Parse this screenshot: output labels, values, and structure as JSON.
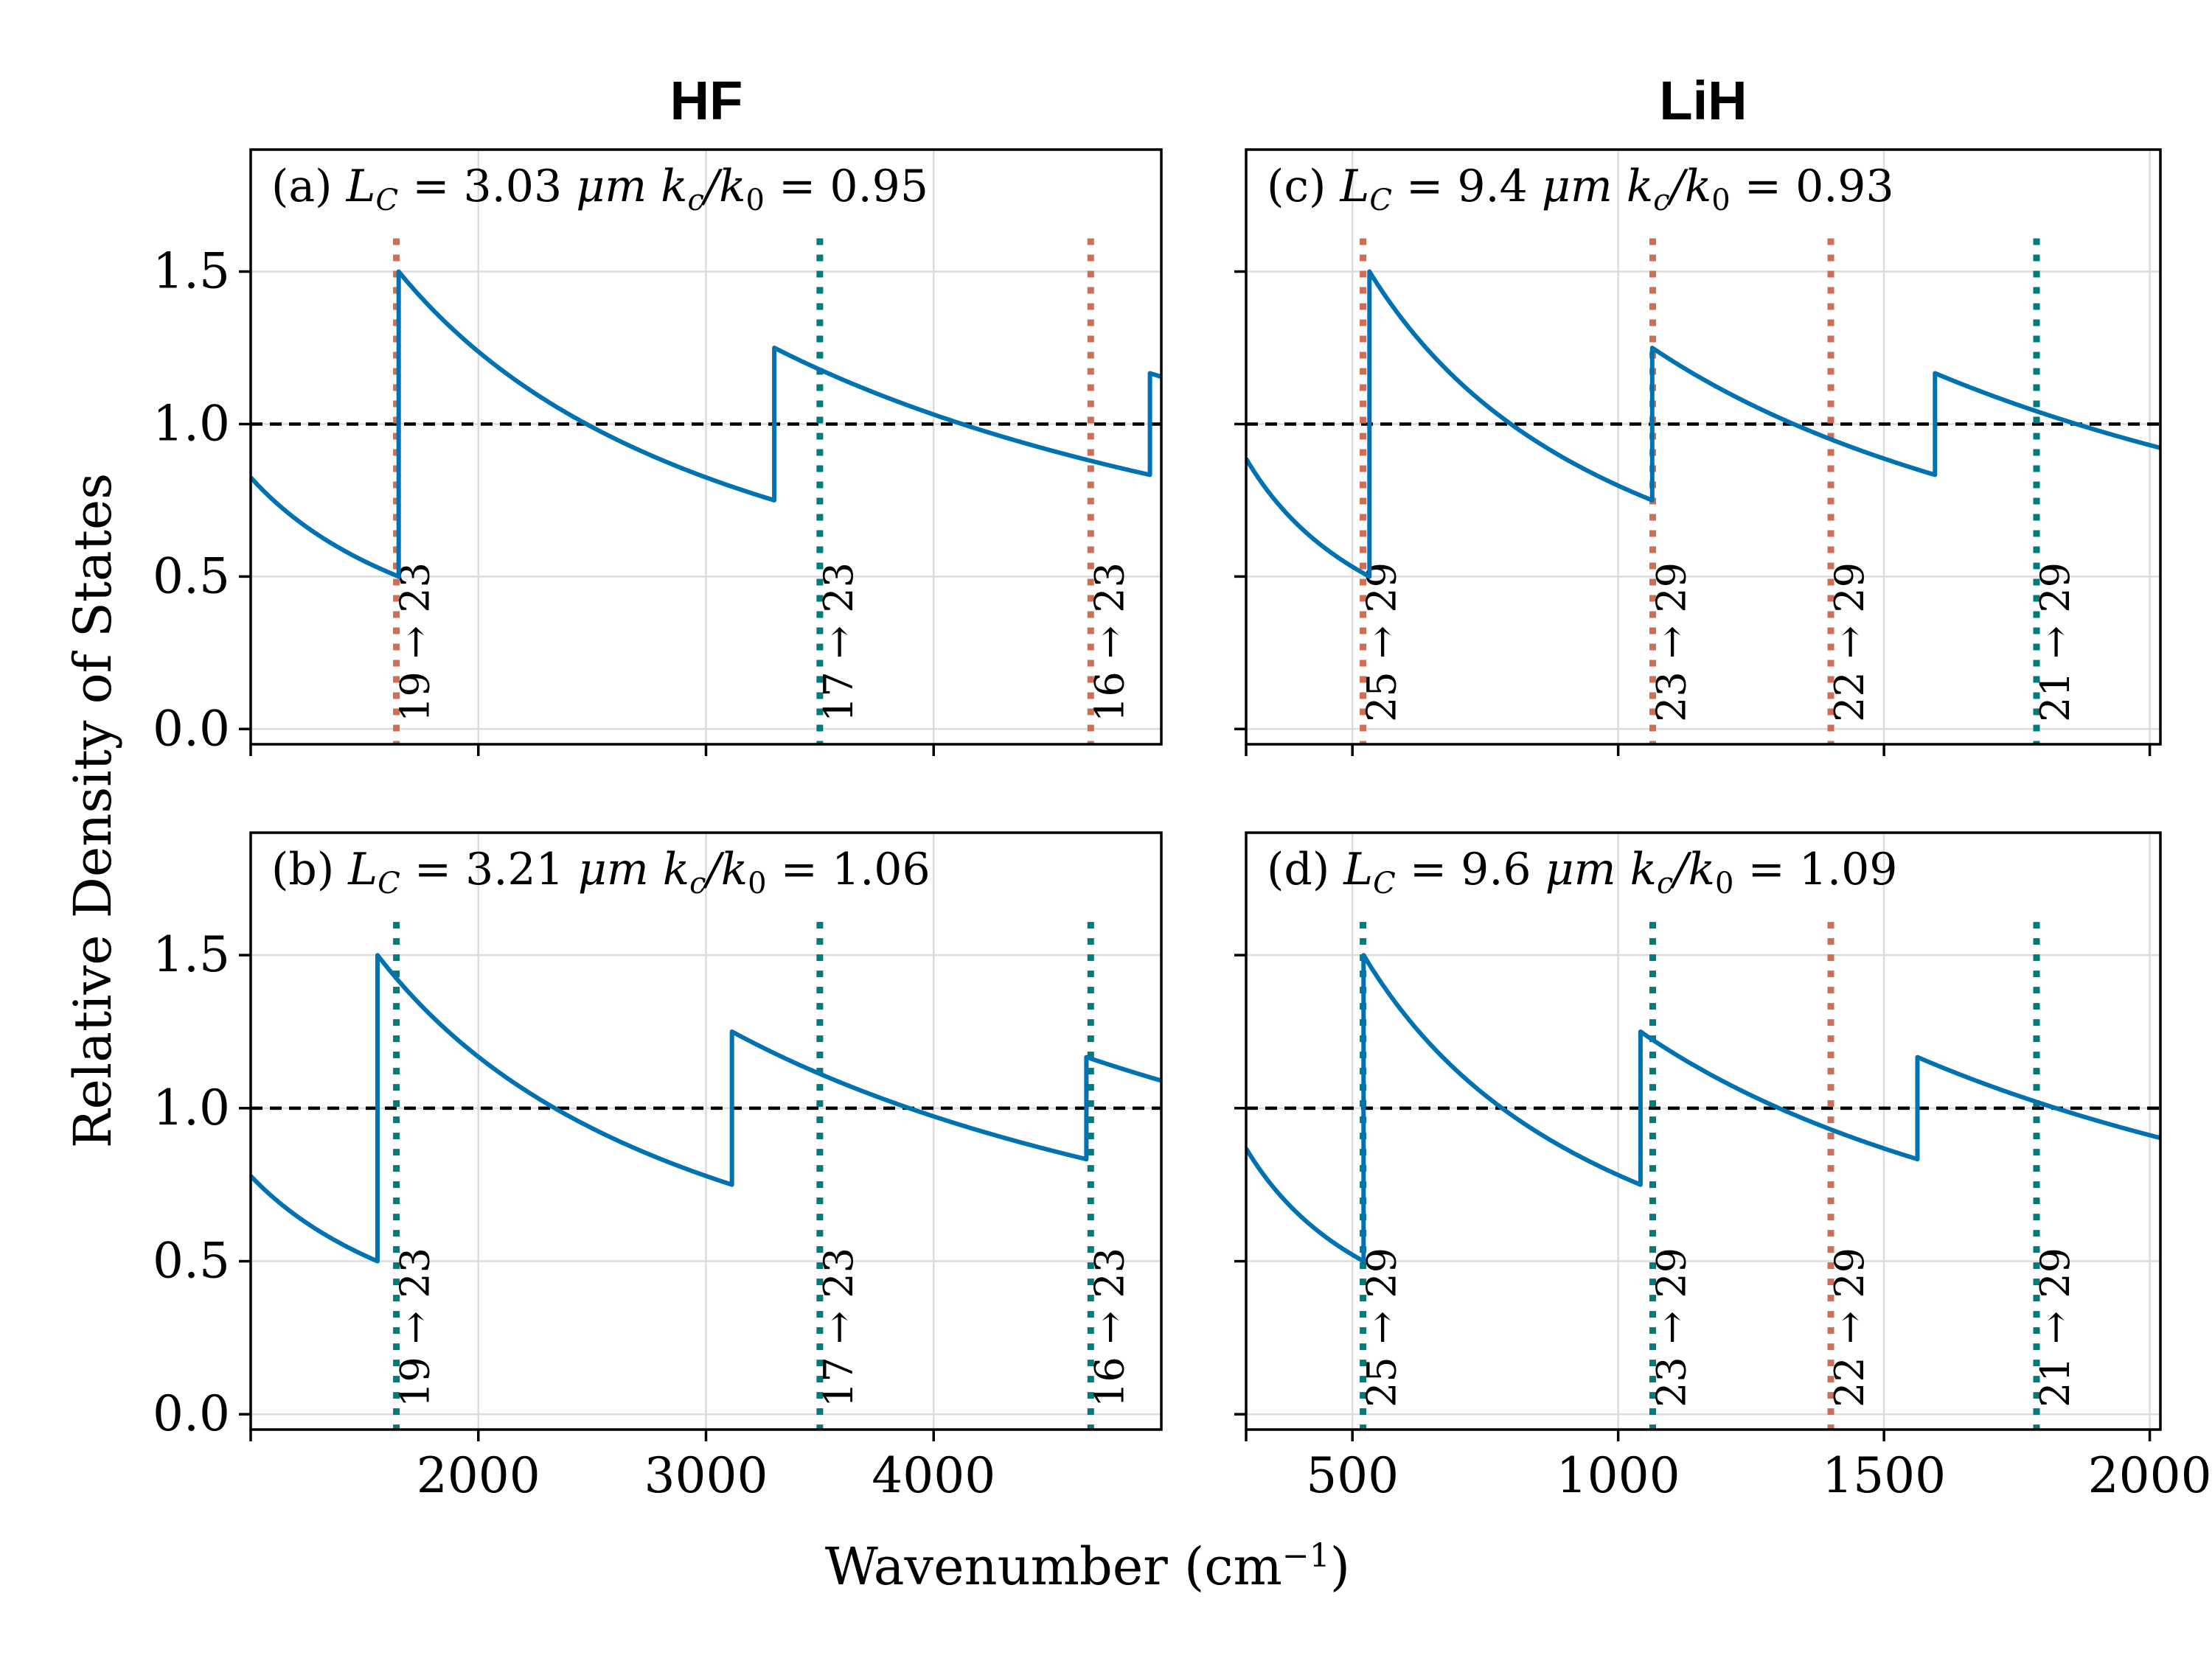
{
  "figure": {
    "column_titles": [
      "HF",
      "LiH"
    ],
    "ylabel": "Relative Density of States",
    "xlabel": "Wavenumber (cm",
    "xlabel_sup": "−1",
    "xlabel_close": ")"
  },
  "colors": {
    "curve": "#0072b2",
    "red_line": "#cd6e55",
    "teal_line": "#007b7b",
    "reference": "#000000",
    "grid": "#dcdcdc"
  },
  "chart_data": [
    {
      "type": "line",
      "panel": "a",
      "title": "HF",
      "annotation": {
        "prefix": "(a)",
        "lc_value": "3.03",
        "lc_unit": "μm",
        "ratio": "0.95"
      },
      "xlim": [
        1000,
        5000
      ],
      "ylim": [
        -0.05,
        1.9
      ],
      "xticks": [
        2000,
        3000,
        4000
      ],
      "yticks": [
        0.0,
        0.5,
        1.0,
        1.5
      ],
      "ytick_labels": [
        "0.0",
        "0.5",
        "1.0",
        "1.5"
      ],
      "show_xticklabels": false,
      "show_yticklabels": true,
      "reference_y": 1.0,
      "mode_steps": [
        1650,
        3300,
        4950
      ],
      "step_peaks": [
        1.5,
        1.25,
        1.167
      ],
      "transitions": [
        {
          "x": 1640,
          "label": "19 → 23",
          "color": "red"
        },
        {
          "x": 3500,
          "label": "17 → 23",
          "color": "teal"
        },
        {
          "x": 4690,
          "label": "16 → 23",
          "color": "red"
        }
      ]
    },
    {
      "type": "line",
      "panel": "c",
      "title": "LiH",
      "annotation": {
        "prefix": "(c)",
        "lc_value": "9.4",
        "lc_unit": "μm",
        "ratio": "0.93"
      },
      "xlim": [
        300,
        2020
      ],
      "ylim": [
        -0.05,
        1.9
      ],
      "xticks": [
        500,
        1000,
        1500,
        2000
      ],
      "yticks": [
        0.0,
        0.5,
        1.0,
        1.5
      ],
      "ytick_labels": [
        "0.0",
        "0.5",
        "1.0",
        "1.5"
      ],
      "show_xticklabels": false,
      "show_yticklabels": false,
      "reference_y": 1.0,
      "mode_steps": [
        532,
        1064,
        1596
      ],
      "step_peaks": [
        1.5,
        1.25,
        1.167
      ],
      "transitions": [
        {
          "x": 520,
          "label": "25 → 29",
          "color": "red"
        },
        {
          "x": 1065,
          "label": "23 → 29",
          "color": "red"
        },
        {
          "x": 1400,
          "label": "22 → 29",
          "color": "red"
        },
        {
          "x": 1787,
          "label": "21 → 29",
          "color": "teal"
        }
      ]
    },
    {
      "type": "line",
      "panel": "b",
      "annotation": {
        "prefix": "(b)",
        "lc_value": "3.21",
        "lc_unit": "μm",
        "ratio": "1.06"
      },
      "xlim": [
        1000,
        5000
      ],
      "ylim": [
        -0.05,
        1.9
      ],
      "xticks": [
        2000,
        3000,
        4000
      ],
      "xtick_labels": [
        "2000",
        "3000",
        "4000"
      ],
      "yticks": [
        0.0,
        0.5,
        1.0,
        1.5
      ],
      "ytick_labels": [
        "0.0",
        "0.5",
        "1.0",
        "1.5"
      ],
      "show_xticklabels": true,
      "show_yticklabels": true,
      "reference_y": 1.0,
      "mode_steps": [
        1557,
        3114,
        4671
      ],
      "step_peaks": [
        1.5,
        1.25,
        1.167
      ],
      "transitions": [
        {
          "x": 1640,
          "label": "19 → 23",
          "color": "teal"
        },
        {
          "x": 3500,
          "label": "17 → 23",
          "color": "teal"
        },
        {
          "x": 4690,
          "label": "16 → 23",
          "color": "teal"
        }
      ]
    },
    {
      "type": "line",
      "panel": "d",
      "annotation": {
        "prefix": "(d)",
        "lc_value": "9.6",
        "lc_unit": "μm",
        "ratio": "1.09"
      },
      "xlim": [
        300,
        2020
      ],
      "ylim": [
        -0.05,
        1.9
      ],
      "xticks": [
        500,
        1000,
        1500,
        2000
      ],
      "xtick_labels": [
        "500",
        "1000",
        "1500",
        "2000"
      ],
      "yticks": [
        0.0,
        0.5,
        1.0,
        1.5
      ],
      "ytick_labels": [
        "0.0",
        "0.5",
        "1.0",
        "1.5"
      ],
      "show_xticklabels": true,
      "show_yticklabels": false,
      "reference_y": 1.0,
      "mode_steps": [
        521,
        1042,
        1563
      ],
      "step_peaks": [
        1.5,
        1.25,
        1.167
      ],
      "transitions": [
        {
          "x": 520,
          "label": "25 → 29",
          "color": "teal"
        },
        {
          "x": 1065,
          "label": "23 → 29",
          "color": "teal"
        },
        {
          "x": 1400,
          "label": "22 → 29",
          "color": "red"
        },
        {
          "x": 1787,
          "label": "21 → 29",
          "color": "teal"
        }
      ]
    }
  ]
}
